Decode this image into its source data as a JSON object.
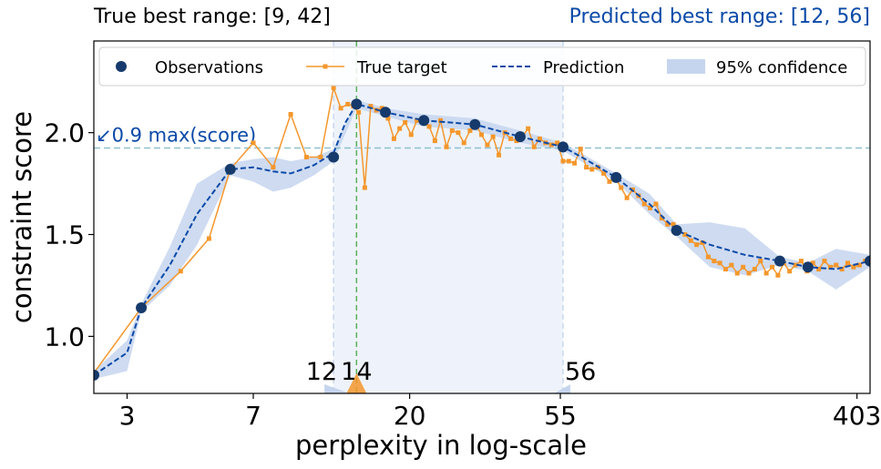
{
  "chart_data": {
    "type": "line",
    "title_left": "True best range: [9, 42]",
    "title_right": "Predicted best range: [12, 56]",
    "xlabel": "perplexity in log-scale",
    "ylabel": "constraint score",
    "x_scale": "log",
    "xlim": [
      2.4,
      440
    ],
    "ylim": [
      0.72,
      2.45
    ],
    "x_ticks": [
      3,
      7,
      20,
      55,
      403
    ],
    "x_tick_labels": [
      "3",
      "7",
      "20",
      "55",
      "403"
    ],
    "y_ticks": [
      1.0,
      1.5,
      2.0
    ],
    "y_tick_labels": [
      "1.0",
      "1.5",
      "2.0"
    ],
    "threshold": {
      "value": 1.925,
      "label": "↙0.9 max(score)"
    },
    "predicted_range": [
      12,
      56
    ],
    "best_marker": 14,
    "range_labels": [
      {
        "x": 12,
        "text": "12"
      },
      {
        "x": 14,
        "text": "14"
      },
      {
        "x": 56,
        "text": "56"
      }
    ],
    "legend": {
      "position": "top",
      "items": [
        "Observations",
        "True target",
        "Prediction",
        "95% confidence"
      ]
    },
    "colors": {
      "observations": "#163a6b",
      "true_target": "#f4972c",
      "prediction": "#0b4aa8",
      "confidence": "#c6d5ee",
      "threshold": "#8fc0cf",
      "best_line": "#5caf5a",
      "range_shade": "#eef3fb",
      "right_title": "#0b4aa8"
    },
    "observations": [
      {
        "x": 2.4,
        "y": 0.81
      },
      {
        "x": 3.3,
        "y": 1.14
      },
      {
        "x": 6.0,
        "y": 1.82
      },
      {
        "x": 12.0,
        "y": 1.88
      },
      {
        "x": 14.0,
        "y": 2.14
      },
      {
        "x": 17.0,
        "y": 2.1
      },
      {
        "x": 22.0,
        "y": 2.06
      },
      {
        "x": 31.0,
        "y": 2.04
      },
      {
        "x": 42.0,
        "y": 1.98
      },
      {
        "x": 56.0,
        "y": 1.93
      },
      {
        "x": 80.0,
        "y": 1.78
      },
      {
        "x": 120.0,
        "y": 1.52
      },
      {
        "x": 240.0,
        "y": 1.37
      },
      {
        "x": 290.0,
        "y": 1.34
      },
      {
        "x": 440.0,
        "y": 1.37
      }
    ],
    "prediction": [
      {
        "x": 2.4,
        "y": 0.81
      },
      {
        "x": 3.0,
        "y": 0.92
      },
      {
        "x": 3.3,
        "y": 1.14
      },
      {
        "x": 4.0,
        "y": 1.35
      },
      {
        "x": 4.8,
        "y": 1.6
      },
      {
        "x": 6.0,
        "y": 1.82
      },
      {
        "x": 7.0,
        "y": 1.83
      },
      {
        "x": 8.0,
        "y": 1.81
      },
      {
        "x": 9.0,
        "y": 1.8
      },
      {
        "x": 10.5,
        "y": 1.84
      },
      {
        "x": 12.0,
        "y": 1.9
      },
      {
        "x": 13.0,
        "y": 2.05
      },
      {
        "x": 14.0,
        "y": 2.14
      },
      {
        "x": 15.5,
        "y": 2.12
      },
      {
        "x": 17.0,
        "y": 2.1
      },
      {
        "x": 22.0,
        "y": 2.06
      },
      {
        "x": 31.0,
        "y": 2.04
      },
      {
        "x": 42.0,
        "y": 1.98
      },
      {
        "x": 56.0,
        "y": 1.93
      },
      {
        "x": 65.0,
        "y": 1.87
      },
      {
        "x": 80.0,
        "y": 1.78
      },
      {
        "x": 100.0,
        "y": 1.65
      },
      {
        "x": 120.0,
        "y": 1.52
      },
      {
        "x": 150.0,
        "y": 1.45
      },
      {
        "x": 190.0,
        "y": 1.4
      },
      {
        "x": 240.0,
        "y": 1.37
      },
      {
        "x": 290.0,
        "y": 1.34
      },
      {
        "x": 350.0,
        "y": 1.33
      },
      {
        "x": 440.0,
        "y": 1.37
      }
    ],
    "confidence_upper": [
      {
        "x": 2.4,
        "y": 0.83
      },
      {
        "x": 3.0,
        "y": 0.98
      },
      {
        "x": 3.3,
        "y": 1.16
      },
      {
        "x": 4.0,
        "y": 1.44
      },
      {
        "x": 4.8,
        "y": 1.75
      },
      {
        "x": 6.0,
        "y": 1.85
      },
      {
        "x": 7.0,
        "y": 1.87
      },
      {
        "x": 8.0,
        "y": 1.88
      },
      {
        "x": 9.0,
        "y": 1.86
      },
      {
        "x": 10.5,
        "y": 1.88
      },
      {
        "x": 12.0,
        "y": 1.92
      },
      {
        "x": 14.0,
        "y": 2.16
      },
      {
        "x": 17.0,
        "y": 2.12
      },
      {
        "x": 22.0,
        "y": 2.09
      },
      {
        "x": 31.0,
        "y": 2.07
      },
      {
        "x": 42.0,
        "y": 2.01
      },
      {
        "x": 56.0,
        "y": 1.95
      },
      {
        "x": 80.0,
        "y": 1.8
      },
      {
        "x": 100.0,
        "y": 1.7
      },
      {
        "x": 120.0,
        "y": 1.55
      },
      {
        "x": 150.0,
        "y": 1.56
      },
      {
        "x": 190.0,
        "y": 1.53
      },
      {
        "x": 240.0,
        "y": 1.39
      },
      {
        "x": 290.0,
        "y": 1.36
      },
      {
        "x": 350.0,
        "y": 1.43
      },
      {
        "x": 440.0,
        "y": 1.4
      }
    ],
    "confidence_lower": [
      {
        "x": 2.4,
        "y": 0.79
      },
      {
        "x": 3.0,
        "y": 0.83
      },
      {
        "x": 3.3,
        "y": 1.12
      },
      {
        "x": 4.0,
        "y": 1.25
      },
      {
        "x": 4.8,
        "y": 1.45
      },
      {
        "x": 6.0,
        "y": 1.79
      },
      {
        "x": 7.0,
        "y": 1.76
      },
      {
        "x": 8.0,
        "y": 1.71
      },
      {
        "x": 9.0,
        "y": 1.73
      },
      {
        "x": 10.5,
        "y": 1.79
      },
      {
        "x": 12.0,
        "y": 1.86
      },
      {
        "x": 14.0,
        "y": 2.12
      },
      {
        "x": 17.0,
        "y": 2.08
      },
      {
        "x": 22.0,
        "y": 2.03
      },
      {
        "x": 31.0,
        "y": 2.01
      },
      {
        "x": 42.0,
        "y": 1.95
      },
      {
        "x": 56.0,
        "y": 1.91
      },
      {
        "x": 80.0,
        "y": 1.76
      },
      {
        "x": 100.0,
        "y": 1.6
      },
      {
        "x": 120.0,
        "y": 1.49
      },
      {
        "x": 150.0,
        "y": 1.34
      },
      {
        "x": 190.0,
        "y": 1.3
      },
      {
        "x": 240.0,
        "y": 1.35
      },
      {
        "x": 290.0,
        "y": 1.32
      },
      {
        "x": 350.0,
        "y": 1.23
      },
      {
        "x": 440.0,
        "y": 1.34
      }
    ],
    "true_target": [
      {
        "x": 2.4,
        "y": 0.82
      },
      {
        "x": 3.3,
        "y": 1.14
      },
      {
        "x": 4.3,
        "y": 1.32
      },
      {
        "x": 5.2,
        "y": 1.48
      },
      {
        "x": 6.0,
        "y": 1.82
      },
      {
        "x": 7.0,
        "y": 1.95
      },
      {
        "x": 8.0,
        "y": 1.83
      },
      {
        "x": 9.0,
        "y": 2.09
      },
      {
        "x": 10.0,
        "y": 1.88
      },
      {
        "x": 11.0,
        "y": 1.88
      },
      {
        "x": 12.0,
        "y": 2.22
      },
      {
        "x": 12.6,
        "y": 2.12
      },
      {
        "x": 13.2,
        "y": 2.14
      },
      {
        "x": 13.7,
        "y": 2.13
      },
      {
        "x": 14.2,
        "y": 2.1
      },
      {
        "x": 14.8,
        "y": 1.73
      },
      {
        "x": 15.4,
        "y": 2.13
      },
      {
        "x": 16.0,
        "y": 2.11
      },
      {
        "x": 16.6,
        "y": 2.12
      },
      {
        "x": 17.3,
        "y": 2.07
      },
      {
        "x": 18.0,
        "y": 1.97
      },
      {
        "x": 18.7,
        "y": 2.02
      },
      {
        "x": 19.4,
        "y": 2.05
      },
      {
        "x": 20.2,
        "y": 1.99
      },
      {
        "x": 21.0,
        "y": 2.06
      },
      {
        "x": 21.9,
        "y": 2.05
      },
      {
        "x": 22.8,
        "y": 2.03
      },
      {
        "x": 23.7,
        "y": 1.96
      },
      {
        "x": 24.6,
        "y": 2.06
      },
      {
        "x": 25.6,
        "y": 1.93
      },
      {
        "x": 26.6,
        "y": 2.01
      },
      {
        "x": 27.7,
        "y": 2.0
      },
      {
        "x": 28.8,
        "y": 1.95
      },
      {
        "x": 30.0,
        "y": 2.01
      },
      {
        "x": 31.2,
        "y": 2.04
      },
      {
        "x": 32.4,
        "y": 1.99
      },
      {
        "x": 33.7,
        "y": 1.94
      },
      {
        "x": 35.0,
        "y": 1.98
      },
      {
        "x": 36.4,
        "y": 1.89
      },
      {
        "x": 37.9,
        "y": 2.0
      },
      {
        "x": 39.4,
        "y": 1.97
      },
      {
        "x": 41.0,
        "y": 1.96
      },
      {
        "x": 42.6,
        "y": 1.98
      },
      {
        "x": 44.3,
        "y": 2.02
      },
      {
        "x": 46.1,
        "y": 1.93
      },
      {
        "x": 47.9,
        "y": 1.97
      },
      {
        "x": 49.8,
        "y": 1.95
      },
      {
        "x": 51.8,
        "y": 1.94
      },
      {
        "x": 53.9,
        "y": 1.95
      },
      {
        "x": 56.0,
        "y": 1.86
      },
      {
        "x": 58.2,
        "y": 1.86
      },
      {
        "x": 60.5,
        "y": 1.85
      },
      {
        "x": 63.0,
        "y": 1.92
      },
      {
        "x": 65.5,
        "y": 1.83
      },
      {
        "x": 68.0,
        "y": 1.82
      },
      {
        "x": 70.8,
        "y": 1.83
      },
      {
        "x": 73.6,
        "y": 1.8
      },
      {
        "x": 76.5,
        "y": 1.76
      },
      {
        "x": 79.5,
        "y": 1.78
      },
      {
        "x": 82.7,
        "y": 1.73
      },
      {
        "x": 86.0,
        "y": 1.68
      },
      {
        "x": 89.4,
        "y": 1.72
      },
      {
        "x": 93.0,
        "y": 1.69
      },
      {
        "x": 96.7,
        "y": 1.65
      },
      {
        "x": 100.5,
        "y": 1.63
      },
      {
        "x": 104.5,
        "y": 1.65
      },
      {
        "x": 108.7,
        "y": 1.58
      },
      {
        "x": 113.0,
        "y": 1.55
      },
      {
        "x": 117.5,
        "y": 1.55
      },
      {
        "x": 122.2,
        "y": 1.52
      },
      {
        "x": 127.0,
        "y": 1.5
      },
      {
        "x": 132.1,
        "y": 1.47
      },
      {
        "x": 137.3,
        "y": 1.45
      },
      {
        "x": 142.8,
        "y": 1.46
      },
      {
        "x": 148.5,
        "y": 1.39
      },
      {
        "x": 154.4,
        "y": 1.37
      },
      {
        "x": 160.5,
        "y": 1.36
      },
      {
        "x": 166.9,
        "y": 1.33
      },
      {
        "x": 173.5,
        "y": 1.35
      },
      {
        "x": 180.4,
        "y": 1.31
      },
      {
        "x": 187.6,
        "y": 1.34
      },
      {
        "x": 195.1,
        "y": 1.31
      },
      {
        "x": 202.8,
        "y": 1.33
      },
      {
        "x": 210.9,
        "y": 1.37
      },
      {
        "x": 219.3,
        "y": 1.31
      },
      {
        "x": 228.0,
        "y": 1.34
      },
      {
        "x": 237.1,
        "y": 1.3
      },
      {
        "x": 246.5,
        "y": 1.36
      },
      {
        "x": 256.3,
        "y": 1.32
      },
      {
        "x": 266.5,
        "y": 1.35
      },
      {
        "x": 277.1,
        "y": 1.37
      },
      {
        "x": 288.2,
        "y": 1.32
      },
      {
        "x": 299.7,
        "y": 1.36
      },
      {
        "x": 311.6,
        "y": 1.33
      },
      {
        "x": 324.0,
        "y": 1.37
      },
      {
        "x": 336.9,
        "y": 1.34
      },
      {
        "x": 350.3,
        "y": 1.35
      },
      {
        "x": 364.2,
        "y": 1.33
      },
      {
        "x": 378.7,
        "y": 1.36
      },
      {
        "x": 393.8,
        "y": 1.34
      },
      {
        "x": 409.5,
        "y": 1.35
      },
      {
        "x": 425.8,
        "y": 1.37
      },
      {
        "x": 440.0,
        "y": 1.37
      }
    ]
  }
}
